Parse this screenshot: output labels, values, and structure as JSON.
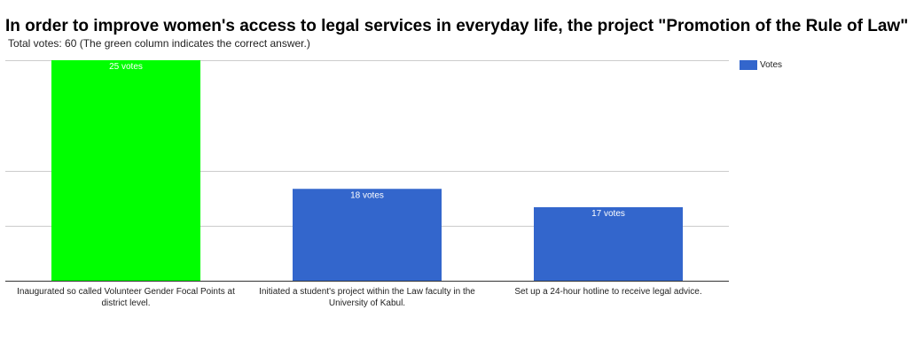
{
  "chart_data": {
    "type": "bar",
    "title": "In order to improve women's access to legal services in everyday life, the project \"Promotion of the Rule of Law\"",
    "subtitle": "Total votes: 60 (The green column indicates the correct answer.)",
    "categories": [
      "Inaugurated so called Volunteer Gender Focal Points at district level.",
      "Initiated a student's project within the Law faculty in the University of Kabul.",
      "Set up a 24-hour hotline to receive legal advice."
    ],
    "series": [
      {
        "name": "Votes",
        "values": [
          25,
          18,
          17
        ],
        "color": "#3366cc"
      }
    ],
    "data_labels": [
      "25 votes",
      "18 votes",
      "17 votes"
    ],
    "bar_colors": [
      "#00ff00",
      "#3366cc",
      "#3366cc"
    ],
    "correct_index": 0,
    "ylim": [
      13,
      25
    ],
    "gridlines": true,
    "legend": {
      "position": "right",
      "label": "Votes",
      "color": "#3366cc"
    }
  }
}
